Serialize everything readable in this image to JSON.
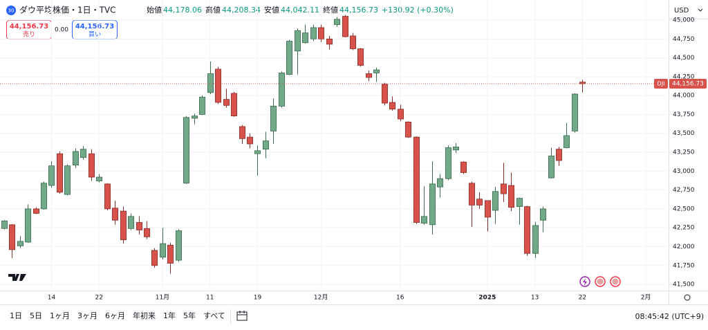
{
  "chart_data": {
    "type": "candlestick",
    "series": [
      {
        "name": "DJI",
        "up_color": "#72a989",
        "up_border": "#3d6b50",
        "down_color": "#d6524b",
        "down_border": "#8a2e2a",
        "open": [
          42240,
          42290,
          42010,
          42060,
          42500,
          42500,
          42810,
          43230,
          42690,
          43080,
          43180,
          43230,
          42870,
          42830,
          42510,
          42470,
          42240,
          42320,
          42240,
          41950,
          41860,
          42020,
          41820,
          42840,
          43700,
          43750,
          44040,
          44350,
          43950,
          44030,
          43590,
          43450,
          43230,
          43290,
          43530,
          43860,
          44280,
          44590,
          44700,
          44750,
          44900,
          44750,
          44940,
          45050,
          44790,
          44620,
          44290,
          44300,
          44150,
          43910,
          43820,
          43650,
          43450,
          42310,
          42290,
          42790,
          42900,
          43280,
          43120,
          42840,
          42630,
          42610,
          42480,
          42830,
          42810,
          42530,
          42530,
          41910,
          42350,
          42910,
          43290,
          43310,
          43530,
          44178.06
        ],
        "high": [
          42350,
          42300,
          42140,
          42560,
          42520,
          42860,
          43130,
          43260,
          43090,
          43300,
          43330,
          43290,
          42960,
          42840,
          42610,
          42530,
          42440,
          42400,
          42340,
          41980,
          42250,
          42050,
          42230,
          43730,
          43760,
          44000,
          44450,
          44380,
          44090,
          44050,
          43610,
          43500,
          43340,
          43520,
          43960,
          44320,
          44740,
          44890,
          44940,
          44940,
          44940,
          44790,
          45040,
          45070,
          44830,
          44630,
          44330,
          44370,
          44170,
          43990,
          43880,
          43660,
          43460,
          42800,
          43130,
          42960,
          43340,
          43370,
          43130,
          42860,
          42720,
          42610,
          42790,
          43110,
          42980,
          42650,
          42540,
          42330,
          42530,
          43310,
          43320,
          43640,
          44030,
          44208.34
        ],
        "low": [
          42230,
          41850,
          41980,
          42050,
          42430,
          42490,
          42780,
          42700,
          42680,
          43040,
          43150,
          42870,
          42850,
          42480,
          42290,
          42040,
          42220,
          42160,
          42100,
          41720,
          41830,
          41640,
          41800,
          42830,
          43620,
          43740,
          44020,
          43890,
          43840,
          43720,
          43360,
          43300,
          42940,
          43170,
          43360,
          43840,
          44270,
          44280,
          44690,
          44720,
          44710,
          44610,
          44910,
          44770,
          44600,
          44380,
          44190,
          44180,
          43870,
          43800,
          43660,
          43440,
          42300,
          42290,
          42160,
          42650,
          42880,
          43240,
          42960,
          42260,
          42500,
          42200,
          42300,
          42590,
          42470,
          42290,
          41880,
          41850,
          42190,
          42900,
          43070,
          43300,
          43510,
          44042.11
        ],
        "close": [
          42340,
          41960,
          42070,
          42500,
          42440,
          42840,
          43070,
          42720,
          43070,
          43260,
          43290,
          42920,
          42920,
          42500,
          42350,
          42090,
          42400,
          42220,
          42130,
          41750,
          42040,
          41780,
          42210,
          43710,
          43730,
          43980,
          44290,
          43910,
          43870,
          43730,
          43430,
          43360,
          43270,
          43400,
          43860,
          44300,
          44720,
          44860,
          44830,
          44900,
          44750,
          44680,
          45010,
          44780,
          44620,
          44400,
          44240,
          44340,
          43900,
          43820,
          43690,
          43450,
          42320,
          42400,
          42830,
          42900,
          43310,
          43320,
          42980,
          42550,
          42550,
          42390,
          42730,
          42700,
          42520,
          42640,
          41910,
          42280,
          42500,
          43200,
          43140,
          43470,
          44020,
          44156.73
        ]
      }
    ],
    "xlim": [
      -0.5,
      83.7
    ],
    "xticks": [
      {
        "value": 6,
        "label": "14"
      },
      {
        "value": 12,
        "label": "22"
      },
      {
        "value": 20,
        "label": "11月"
      },
      {
        "value": 26,
        "label": "11"
      },
      {
        "value": 32,
        "label": "19"
      },
      {
        "value": 40,
        "label": "12月"
      },
      {
        "value": 50,
        "label": "16"
      },
      {
        "value": 61,
        "label": "2025"
      },
      {
        "value": 67,
        "label": "13"
      },
      {
        "value": 73,
        "label": "22"
      },
      {
        "value": 81,
        "label": "2月"
      }
    ],
    "ylim": [
      41418,
      45064
    ],
    "yticks": [
      {
        "value": 41500,
        "label": "41,500"
      },
      {
        "value": 41750,
        "label": "41,750"
      },
      {
        "value": 42000,
        "label": "42,000"
      },
      {
        "value": 42250,
        "label": "42,250"
      },
      {
        "value": 42500,
        "label": "42,500"
      },
      {
        "value": 42750,
        "label": "42,750"
      },
      {
        "value": 43000,
        "label": "43,000"
      },
      {
        "value": 43250,
        "label": "43,250"
      },
      {
        "value": 43500,
        "label": "43,500"
      },
      {
        "value": 43750,
        "label": "43,750"
      },
      {
        "value": 44000,
        "label": "44,000"
      },
      {
        "value": 44250,
        "label": "44,250"
      },
      {
        "value": 44500,
        "label": "44,500"
      },
      {
        "value": 44750,
        "label": "44,750"
      },
      {
        "value": 45000,
        "label": "45,000"
      }
    ],
    "last_price_label": "44,156.73"
  },
  "ui": {
    "badge": "30",
    "symbol": "ダウ平均株価・1日・TVC",
    "ohlc": [
      {
        "k": "始値",
        "v": "44,178.06"
      },
      {
        "k": "高値",
        "v": "44,208.34"
      },
      {
        "k": "安値",
        "v": "44,042.11"
      },
      {
        "k": "終値",
        "v": "44,156.73"
      }
    ],
    "change": "+130.92 (+0.30%)",
    "sell_price": "44,156.73",
    "sell": "売り",
    "spread": "0.00",
    "buy_price": "44,156.73",
    "buy": "買い",
    "currency": "USD",
    "ranges": [
      "1日",
      "5日",
      "1ヶ月",
      "3ヶ月",
      "6ヶ月",
      "年初来",
      "1年",
      "5年",
      "すべて"
    ],
    "time": "08:45:42 (UTC+9)"
  }
}
